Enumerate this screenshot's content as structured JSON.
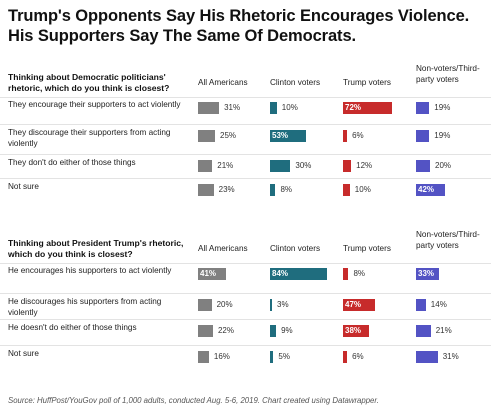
{
  "title_line1": "Trump's Opponents Say His Rhetoric Encourages Violence.",
  "title_line2": "His Supporters Say The Same Of Democrats.",
  "columns": [
    "All Americans",
    "Clinton voters",
    "Trump voters",
    "Non-voters/Third-party voters"
  ],
  "colors": {
    "All Americans": "#808080",
    "Clinton voters": "#1f6d7e",
    "Trump voters": "#c72b2b",
    "Non-voters/Third-party voters": "#5353c4"
  },
  "footer": "Source: HuffPost/YouGov poll of 1,000 adults, conducted Aug. 5-6, 2019. Chart created using Datawrapper.",
  "chart_data": {
    "type": "table",
    "unit": "%",
    "sections": [
      {
        "question": "Thinking about Democratic politicians' rhetoric, which do you think is closest?",
        "column_headers": [
          "All Americans",
          "Clinton voters",
          "Trump voters",
          "Non-voters/Third-party voters"
        ],
        "rows": [
          {
            "label": "They encourage their supporters to act violently",
            "values": [
              31,
              10,
              72,
              19
            ]
          },
          {
            "label": "They discourage their supporters from acting violently",
            "values": [
              25,
              53,
              6,
              19
            ]
          },
          {
            "label": "They don't do either of those things",
            "values": [
              21,
              30,
              12,
              20
            ]
          },
          {
            "label": "Not sure",
            "values": [
              23,
              8,
              10,
              42
            ]
          }
        ]
      },
      {
        "question": "Thinking about President Trump's rhetoric, which do you think is closest?",
        "column_headers": [
          "All Americans",
          "Clinton voters",
          "Trump voters",
          "Non-voters/Third-party voters"
        ],
        "rows": [
          {
            "label": "He encourages his supporters to act violently",
            "values": [
              41,
              84,
              8,
              33
            ]
          },
          {
            "label": "He discourages his supporters from acting violently",
            "values": [
              20,
              3,
              47,
              14
            ]
          },
          {
            "label": "He doesn't do either of those things",
            "values": [
              22,
              9,
              38,
              21
            ]
          },
          {
            "label": "Not sure",
            "values": [
              16,
              5,
              6,
              31
            ]
          }
        ]
      }
    ]
  }
}
